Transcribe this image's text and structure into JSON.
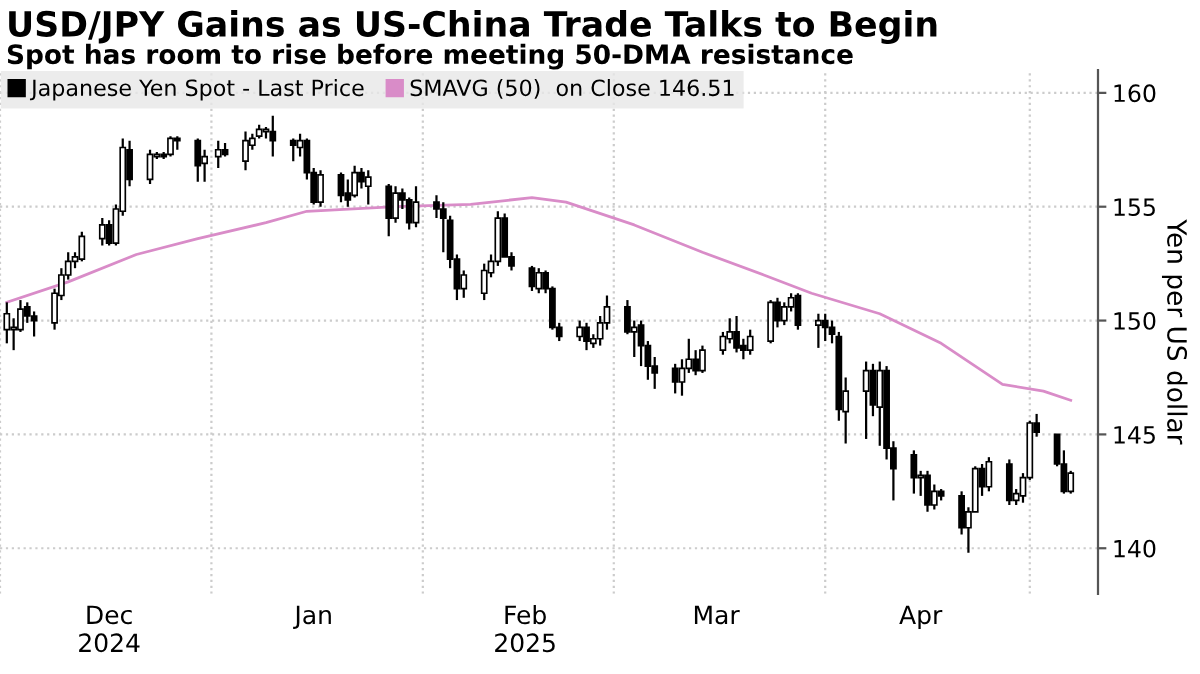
{
  "chart_data": {
    "type": "candlestick",
    "series": [
      {
        "name": "Japanese Yen Spot - Last Price",
        "color": "#000000",
        "x": [
          "2024-12-02",
          "2024-12-03",
          "2024-12-04",
          "2024-12-05",
          "2024-12-06",
          "2024-12-09",
          "2024-12-10",
          "2024-12-11",
          "2024-12-12",
          "2024-12-13",
          "2024-12-16",
          "2024-12-17",
          "2024-12-18",
          "2024-12-19",
          "2024-12-20",
          "2024-12-23",
          "2024-12-24",
          "2024-12-25",
          "2024-12-26",
          "2024-12-27",
          "2024-12-30",
          "2024-12-31",
          "2025-01-02",
          "2025-01-03",
          "2025-01-06",
          "2025-01-07",
          "2025-01-08",
          "2025-01-09",
          "2025-01-10",
          "2025-01-13",
          "2025-01-14",
          "2025-01-15",
          "2025-01-16",
          "2025-01-17",
          "2025-01-20",
          "2025-01-21",
          "2025-01-22",
          "2025-01-23",
          "2025-01-24",
          "2025-01-27",
          "2025-01-28",
          "2025-01-29",
          "2025-01-30",
          "2025-01-31",
          "2025-02-03",
          "2025-02-04",
          "2025-02-05",
          "2025-02-06",
          "2025-02-07",
          "2025-02-10",
          "2025-02-11",
          "2025-02-12",
          "2025-02-13",
          "2025-02-14",
          "2025-02-17",
          "2025-02-18",
          "2025-02-19",
          "2025-02-20",
          "2025-02-21",
          "2025-02-24",
          "2025-02-25",
          "2025-02-26",
          "2025-02-27",
          "2025-02-28",
          "2025-03-03",
          "2025-03-04",
          "2025-03-05",
          "2025-03-06",
          "2025-03-07",
          "2025-03-10",
          "2025-03-11",
          "2025-03-12",
          "2025-03-13",
          "2025-03-14",
          "2025-03-17",
          "2025-03-18",
          "2025-03-19",
          "2025-03-20",
          "2025-03-21",
          "2025-03-24",
          "2025-03-25",
          "2025-03-26",
          "2025-03-27",
          "2025-03-28",
          "2025-03-31",
          "2025-04-01",
          "2025-04-02",
          "2025-04-03",
          "2025-04-04",
          "2025-04-07",
          "2025-04-08",
          "2025-04-09",
          "2025-04-10",
          "2025-04-11",
          "2025-04-14",
          "2025-04-15",
          "2025-04-16",
          "2025-04-17",
          "2025-04-18",
          "2025-04-21",
          "2025-04-22",
          "2025-04-23",
          "2025-04-24",
          "2025-04-25",
          "2025-04-28",
          "2025-04-29",
          "2025-04-30",
          "2025-05-01",
          "2025-05-02",
          "2025-05-05",
          "2025-05-06",
          "2025-05-07"
        ],
        "ohlc": [
          [
            149.6,
            150.8,
            149.0,
            150.3
          ],
          [
            149.6,
            150.1,
            148.7,
            149.7
          ],
          [
            149.6,
            150.9,
            149.5,
            150.5
          ],
          [
            150.6,
            150.8,
            149.9,
            150.2
          ],
          [
            150.2,
            150.4,
            149.3,
            150.0
          ],
          [
            149.9,
            151.4,
            149.6,
            151.2
          ],
          [
            151.1,
            152.3,
            150.9,
            152.0
          ],
          [
            152.0,
            153.0,
            151.8,
            152.6
          ],
          [
            152.6,
            153.0,
            152.3,
            152.8
          ],
          [
            152.7,
            153.9,
            152.6,
            153.7
          ],
          [
            153.6,
            154.5,
            153.3,
            154.2
          ],
          [
            154.2,
            154.4,
            153.3,
            153.4
          ],
          [
            153.4,
            155.1,
            153.3,
            154.9
          ],
          [
            154.8,
            158.0,
            154.6,
            157.6
          ],
          [
            157.5,
            157.9,
            155.9,
            156.2
          ],
          [
            156.2,
            157.5,
            156.0,
            157.3
          ],
          [
            157.2,
            157.4,
            157.1,
            157.3
          ],
          [
            157.3,
            157.4,
            157.1,
            157.2
          ],
          [
            157.3,
            158.1,
            157.2,
            158.0
          ],
          [
            158.0,
            158.1,
            157.5,
            157.9
          ],
          [
            157.9,
            158.0,
            156.1,
            156.8
          ],
          [
            156.9,
            157.5,
            156.1,
            157.2
          ],
          [
            157.2,
            157.9,
            156.7,
            157.5
          ],
          [
            157.5,
            157.8,
            157.2,
            157.3
          ],
          [
            157.0,
            158.3,
            156.6,
            157.9
          ],
          [
            157.7,
            158.2,
            157.5,
            158.0
          ],
          [
            158.1,
            158.6,
            158.0,
            158.4
          ],
          [
            158.3,
            158.5,
            158.0,
            158.4
          ],
          [
            158.3,
            159.0,
            157.2,
            157.9
          ],
          [
            157.9,
            158.0,
            157.0,
            157.7
          ],
          [
            157.6,
            158.2,
            157.2,
            157.9
          ],
          [
            157.9,
            158.0,
            156.2,
            156.5
          ],
          [
            156.5,
            156.7,
            155.1,
            155.2
          ],
          [
            155.2,
            156.6,
            155.0,
            156.4
          ],
          [
            156.4,
            156.5,
            155.2,
            155.5
          ],
          [
            155.6,
            156.2,
            155.0,
            155.3
          ],
          [
            155.5,
            156.8,
            155.4,
            156.5
          ],
          [
            156.5,
            156.7,
            155.8,
            156.1
          ],
          [
            155.9,
            156.6,
            155.1,
            156.3
          ],
          [
            155.9,
            156.0,
            153.7,
            154.5
          ],
          [
            154.5,
            155.9,
            154.3,
            155.6
          ],
          [
            155.6,
            155.8,
            154.9,
            155.3
          ],
          [
            155.3,
            155.4,
            154.0,
            154.3
          ],
          [
            154.3,
            155.9,
            154.1,
            155.2
          ],
          [
            155.2,
            155.5,
            154.5,
            154.9
          ],
          [
            154.9,
            155.2,
            153.0,
            154.5
          ],
          [
            154.4,
            154.6,
            152.3,
            152.7
          ],
          [
            152.7,
            152.9,
            150.9,
            151.4
          ],
          [
            151.4,
            152.2,
            151.0,
            152.0
          ],
          [
            151.2,
            152.5,
            150.9,
            152.2
          ],
          [
            152.1,
            152.9,
            151.9,
            152.6
          ],
          [
            152.6,
            154.8,
            152.4,
            154.5
          ],
          [
            154.5,
            154.7,
            152.8,
            152.8
          ],
          [
            152.8,
            153.0,
            152.2,
            152.4
          ],
          [
            152.3,
            152.4,
            151.3,
            151.5
          ],
          [
            151.4,
            152.3,
            151.2,
            152.1
          ],
          [
            152.1,
            152.2,
            151.2,
            151.4
          ],
          [
            151.4,
            151.5,
            149.6,
            149.7
          ],
          [
            149.7,
            149.9,
            149.1,
            149.3
          ],
          [
            149.3,
            150.0,
            149.1,
            149.7
          ],
          [
            149.7,
            149.9,
            148.7,
            149.1
          ],
          [
            149.0,
            149.4,
            148.8,
            149.2
          ],
          [
            149.2,
            150.2,
            148.9,
            149.9
          ],
          [
            149.9,
            151.1,
            149.6,
            150.6
          ],
          [
            150.6,
            150.9,
            149.4,
            149.5
          ],
          [
            149.5,
            150.0,
            148.4,
            149.7
          ],
          [
            149.8,
            150.0,
            148.0,
            148.9
          ],
          [
            148.9,
            149.1,
            147.4,
            148.0
          ],
          [
            148.0,
            148.4,
            147.0,
            147.7
          ],
          [
            147.9,
            148.1,
            146.8,
            147.3
          ],
          [
            147.3,
            148.3,
            146.7,
            147.9
          ],
          [
            147.9,
            149.2,
            147.7,
            148.3
          ],
          [
            148.3,
            148.7,
            147.6,
            147.8
          ],
          [
            147.8,
            148.9,
            147.7,
            148.7
          ],
          [
            148.7,
            149.5,
            148.5,
            149.3
          ],
          [
            149.2,
            150.1,
            149.0,
            149.5
          ],
          [
            149.5,
            150.2,
            148.6,
            148.8
          ],
          [
            148.9,
            149.2,
            148.3,
            148.7
          ],
          [
            148.7,
            149.6,
            148.5,
            149.3
          ],
          [
            149.1,
            150.9,
            149.0,
            150.8
          ],
          [
            150.8,
            151.0,
            149.7,
            150.0
          ],
          [
            150.0,
            150.8,
            149.8,
            150.6
          ],
          [
            150.6,
            151.2,
            150.4,
            151.0
          ],
          [
            151.1,
            151.2,
            149.6,
            149.8
          ],
          [
            149.8,
            150.3,
            148.8,
            150.0
          ],
          [
            150.0,
            150.3,
            149.1,
            149.7
          ],
          [
            149.7,
            150.0,
            149.0,
            149.4
          ],
          [
            149.3,
            149.5,
            145.6,
            146.1
          ],
          [
            146.0,
            147.5,
            144.6,
            146.9
          ],
          [
            146.9,
            148.2,
            144.8,
            147.8
          ],
          [
            147.8,
            148.1,
            145.8,
            146.3
          ],
          [
            146.2,
            148.2,
            144.5,
            147.8
          ],
          [
            147.8,
            148.0,
            143.9,
            144.4
          ],
          [
            144.4,
            144.7,
            142.1,
            143.5
          ],
          [
            144.1,
            144.3,
            142.4,
            143.1
          ],
          [
            143.1,
            143.4,
            142.3,
            143.2
          ],
          [
            143.2,
            143.4,
            141.6,
            141.9
          ],
          [
            141.9,
            142.8,
            141.7,
            142.5
          ],
          [
            142.5,
            142.6,
            142.1,
            142.3
          ],
          [
            142.3,
            142.5,
            140.6,
            140.9
          ],
          [
            140.9,
            141.8,
            139.8,
            141.6
          ],
          [
            141.6,
            143.6,
            141.6,
            143.5
          ],
          [
            143.5,
            143.7,
            142.3,
            142.7
          ],
          [
            142.7,
            144.0,
            142.5,
            143.8
          ],
          [
            143.7,
            143.9,
            141.9,
            142.1
          ],
          [
            142.1,
            142.6,
            141.9,
            142.4
          ],
          [
            142.3,
            143.3,
            142.0,
            143.1
          ],
          [
            143.1,
            145.6,
            143.0,
            145.5
          ],
          [
            145.5,
            145.9,
            144.9,
            145.1
          ],
          [
            145.0,
            145.0,
            143.6,
            143.7
          ],
          [
            143.7,
            144.3,
            142.4,
            142.5
          ],
          [
            142.5,
            143.4,
            142.4,
            143.3
          ]
        ]
      },
      {
        "name": "SMAVG (50)  on Close 146.51",
        "type": "line",
        "color": "#d98cc8",
        "x": [
          "2024-12-02",
          "2024-12-11",
          "2024-12-21",
          "2024-12-30",
          "2025-01-09",
          "2025-01-15",
          "2025-01-28",
          "2025-02-08",
          "2025-02-17",
          "2025-02-22",
          "2025-03-04",
          "2025-03-14",
          "2025-03-23",
          "2025-03-30",
          "2025-04-09",
          "2025-04-18",
          "2025-04-27",
          "2025-05-03",
          "2025-05-07"
        ],
        "values": [
          150.8,
          151.7,
          152.9,
          153.6,
          154.3,
          154.8,
          155.0,
          155.1,
          155.4,
          155.2,
          154.2,
          153.0,
          152.0,
          151.2,
          150.3,
          149.0,
          147.2,
          146.9,
          146.5
        ]
      }
    ],
    "title": "USD/JPY Gains as US-China Trade Talks to Begin",
    "subtitle": "Spot has room to rise before meeting 50-DMA resistance",
    "ylabel": "Yen per US dollar",
    "xlim": [
      "2024-12-01",
      "2025-05-11"
    ],
    "xticks": [
      {
        "value": "2024-12-01",
        "label": null
      },
      {
        "value": "2025-01-01",
        "label": null
      },
      {
        "value": "2025-02-01",
        "label": null
      },
      {
        "value": "2025-03-01",
        "label": null
      },
      {
        "value": "2025-04-01",
        "label": null
      },
      {
        "value": "2025-05-01",
        "label": null
      },
      {
        "value": "2024-12-17",
        "label": "Dec\n2024"
      },
      {
        "value": "2025-01-16",
        "label": "Jan"
      },
      {
        "value": "2025-02-16",
        "label": "Feb\n2025"
      },
      {
        "value": "2025-03-16",
        "label": "Mar"
      },
      {
        "value": "2025-04-15",
        "label": "Apr"
      }
    ],
    "ylim": [
      138,
      161
    ],
    "yticks": [
      140,
      145,
      150,
      155,
      160
    ],
    "grid": true,
    "legend": "top left"
  }
}
